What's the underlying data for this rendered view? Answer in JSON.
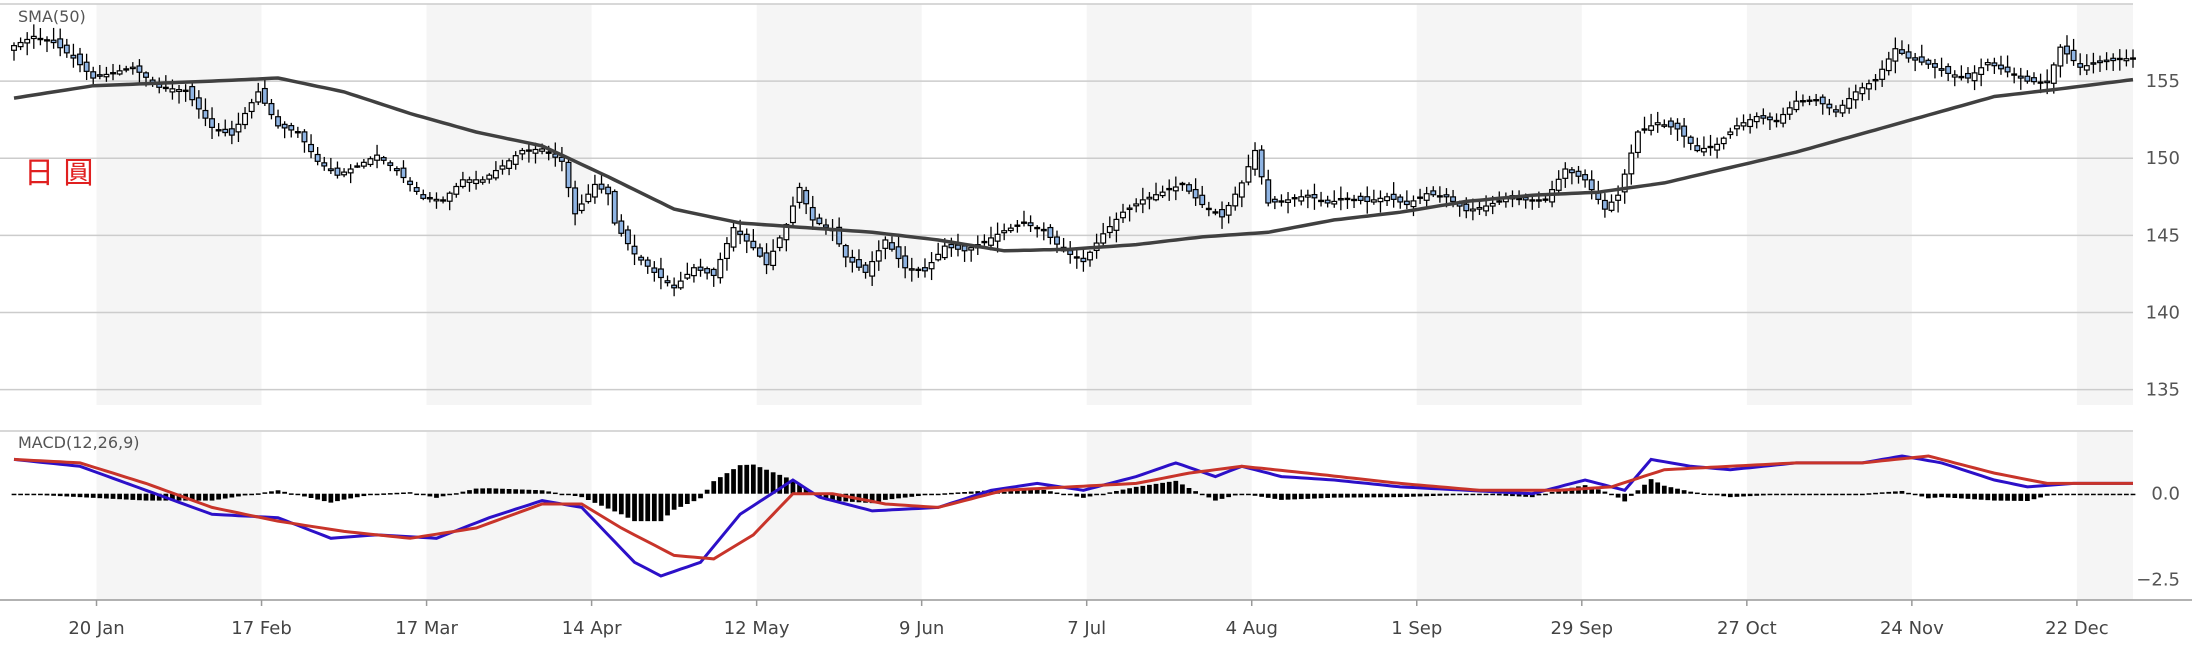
{
  "chart_data": [
    {
      "type": "candlestick",
      "title": "",
      "indicator_label": "SMA(50)",
      "watermark": "日 圓",
      "ylim": [
        134,
        160
      ],
      "y_ticks": [
        135,
        140,
        145,
        150,
        155
      ],
      "x_tick_labels": [
        "20 Jan",
        "17 Feb",
        "17 Mar",
        "14 Apr",
        "12 May",
        "9 Jun",
        "7 Jul",
        "4 Aug",
        "1 Sep",
        "29 Sep",
        "27 Oct",
        "24 Nov",
        "22 Dec"
      ],
      "close_keypoints": [
        [
          0,
          157.3
        ],
        [
          3,
          157.9
        ],
        [
          6,
          157.5
        ],
        [
          9,
          156.5
        ],
        [
          12,
          155.2
        ],
        [
          18,
          155.9
        ],
        [
          22,
          154.6
        ],
        [
          26,
          154.4
        ],
        [
          30,
          152.0
        ],
        [
          33,
          151.5
        ],
        [
          37,
          154.3
        ],
        [
          40,
          152.1
        ],
        [
          43,
          151.7
        ],
        [
          46,
          149.8
        ],
        [
          49,
          148.9
        ],
        [
          52,
          149.5
        ],
        [
          55,
          150.2
        ],
        [
          58,
          149.2
        ],
        [
          62,
          147.4
        ],
        [
          65,
          147.3
        ],
        [
          68,
          148.6
        ],
        [
          71,
          148.6
        ],
        [
          74,
          149.5
        ],
        [
          77,
          150.5
        ],
        [
          80,
          150.6
        ],
        [
          83,
          149.8
        ],
        [
          85,
          146.4
        ],
        [
          88,
          148.3
        ],
        [
          90,
          147.7
        ],
        [
          91,
          145.8
        ],
        [
          94,
          143.8
        ],
        [
          97,
          142.6
        ],
        [
          100,
          141.6
        ],
        [
          103,
          142.9
        ],
        [
          106,
          142.4
        ],
        [
          109,
          145.5
        ],
        [
          112,
          144.2
        ],
        [
          114,
          143.1
        ],
        [
          117,
          145.7
        ],
        [
          119,
          148.1
        ],
        [
          121,
          146.0
        ],
        [
          124,
          145.3
        ],
        [
          126,
          143.6
        ],
        [
          129,
          142.6
        ],
        [
          132,
          144.7
        ],
        [
          135,
          142.9
        ],
        [
          138,
          142.7
        ],
        [
          141,
          144.3
        ],
        [
          144,
          144.0
        ],
        [
          147,
          144.6
        ],
        [
          150,
          145.3
        ],
        [
          153,
          145.8
        ],
        [
          156,
          145.3
        ],
        [
          159,
          144.0
        ],
        [
          162,
          143.3
        ],
        [
          165,
          145.1
        ],
        [
          168,
          146.5
        ],
        [
          171,
          147.3
        ],
        [
          174,
          147.8
        ],
        [
          177,
          148.3
        ],
        [
          180,
          147.0
        ],
        [
          183,
          146.2
        ],
        [
          186,
          148.4
        ],
        [
          188,
          150.5
        ],
        [
          190,
          147.1
        ],
        [
          193,
          147.3
        ],
        [
          196,
          147.6
        ],
        [
          199,
          147.1
        ],
        [
          202,
          147.4
        ],
        [
          205,
          147.2
        ],
        [
          208,
          147.5
        ],
        [
          211,
          147.0
        ],
        [
          214,
          147.7
        ],
        [
          217,
          147.5
        ],
        [
          220,
          146.6
        ],
        [
          223,
          146.9
        ],
        [
          226,
          147.4
        ],
        [
          229,
          147.3
        ],
        [
          232,
          147.3
        ],
        [
          235,
          149.3
        ],
        [
          238,
          148.6
        ],
        [
          241,
          146.7
        ],
        [
          243,
          147.6
        ],
        [
          246,
          151.7
        ],
        [
          249,
          152.3
        ],
        [
          252,
          151.9
        ],
        [
          255,
          150.5
        ],
        [
          258,
          150.9
        ],
        [
          261,
          152.1
        ],
        [
          264,
          152.7
        ],
        [
          267,
          152.4
        ],
        [
          270,
          153.7
        ],
        [
          273,
          153.8
        ],
        [
          276,
          153.0
        ],
        [
          279,
          154.3
        ],
        [
          282,
          155.1
        ],
        [
          285,
          157.1
        ],
        [
          287,
          156.5
        ],
        [
          290,
          156.1
        ],
        [
          293,
          155.5
        ],
        [
          296,
          155.2
        ],
        [
          299,
          156.2
        ],
        [
          302,
          155.6
        ],
        [
          305,
          155.0
        ],
        [
          308,
          154.9
        ],
        [
          310,
          157.2
        ],
        [
          313,
          155.9
        ],
        [
          316,
          156.2
        ],
        [
          319,
          156.4
        ],
        [
          321,
          156.5
        ]
      ],
      "sma50_keypoints": [
        [
          0,
          153.9
        ],
        [
          12,
          154.7
        ],
        [
          30,
          155.0
        ],
        [
          40,
          155.2
        ],
        [
          50,
          154.3
        ],
        [
          60,
          152.9
        ],
        [
          70,
          151.7
        ],
        [
          80,
          150.8
        ],
        [
          90,
          148.8
        ],
        [
          100,
          146.7
        ],
        [
          110,
          145.8
        ],
        [
          120,
          145.5
        ],
        [
          130,
          145.2
        ],
        [
          140,
          144.7
        ],
        [
          150,
          144.0
        ],
        [
          160,
          144.1
        ],
        [
          170,
          144.4
        ],
        [
          180,
          144.9
        ],
        [
          190,
          145.2
        ],
        [
          200,
          146.0
        ],
        [
          210,
          146.5
        ],
        [
          220,
          147.2
        ],
        [
          230,
          147.6
        ],
        [
          240,
          147.8
        ],
        [
          250,
          148.4
        ],
        [
          260,
          149.4
        ],
        [
          270,
          150.4
        ],
        [
          280,
          151.6
        ],
        [
          290,
          152.8
        ],
        [
          300,
          154.0
        ],
        [
          310,
          154.5
        ],
        [
          321,
          155.1
        ]
      ]
    },
    {
      "type": "line",
      "indicator_label": "MACD(12,26,9)",
      "ylim": [
        -3.1,
        1.8
      ],
      "y_ticks": [
        0.0,
        -2.5
      ],
      "macd_keypoints": [
        [
          0,
          1.0
        ],
        [
          10,
          0.8
        ],
        [
          20,
          0.1
        ],
        [
          30,
          -0.6
        ],
        [
          40,
          -0.7
        ],
        [
          48,
          -1.3
        ],
        [
          55,
          -1.2
        ],
        [
          64,
          -1.3
        ],
        [
          72,
          -0.7
        ],
        [
          80,
          -0.2
        ],
        [
          86,
          -0.4
        ],
        [
          94,
          -2.0
        ],
        [
          98,
          -2.4
        ],
        [
          104,
          -2.0
        ],
        [
          110,
          -0.6
        ],
        [
          118,
          0.4
        ],
        [
          122,
          -0.1
        ],
        [
          130,
          -0.5
        ],
        [
          140,
          -0.4
        ],
        [
          148,
          0.1
        ],
        [
          155,
          0.3
        ],
        [
          162,
          0.1
        ],
        [
          170,
          0.5
        ],
        [
          176,
          0.9
        ],
        [
          182,
          0.5
        ],
        [
          186,
          0.8
        ],
        [
          192,
          0.5
        ],
        [
          200,
          0.4
        ],
        [
          210,
          0.2
        ],
        [
          220,
          0.1
        ],
        [
          230,
          0.0
        ],
        [
          238,
          0.4
        ],
        [
          244,
          0.1
        ],
        [
          248,
          1.0
        ],
        [
          254,
          0.8
        ],
        [
          260,
          0.7
        ],
        [
          270,
          0.9
        ],
        [
          280,
          0.9
        ],
        [
          286,
          1.1
        ],
        [
          292,
          0.9
        ],
        [
          300,
          0.4
        ],
        [
          305,
          0.2
        ],
        [
          312,
          0.3
        ],
        [
          321,
          0.3
        ]
      ],
      "signal_keypoints": [
        [
          0,
          1.0
        ],
        [
          10,
          0.9
        ],
        [
          20,
          0.3
        ],
        [
          30,
          -0.4
        ],
        [
          40,
          -0.8
        ],
        [
          50,
          -1.1
        ],
        [
          60,
          -1.3
        ],
        [
          70,
          -1.0
        ],
        [
          80,
          -0.3
        ],
        [
          86,
          -0.3
        ],
        [
          92,
          -1.0
        ],
        [
          100,
          -1.8
        ],
        [
          106,
          -1.9
        ],
        [
          112,
          -1.2
        ],
        [
          118,
          0.0
        ],
        [
          124,
          0.0
        ],
        [
          132,
          -0.3
        ],
        [
          140,
          -0.4
        ],
        [
          150,
          0.1
        ],
        [
          160,
          0.2
        ],
        [
          170,
          0.3
        ],
        [
          178,
          0.6
        ],
        [
          186,
          0.8
        ],
        [
          196,
          0.6
        ],
        [
          210,
          0.3
        ],
        [
          222,
          0.1
        ],
        [
          234,
          0.1
        ],
        [
          242,
          0.2
        ],
        [
          250,
          0.7
        ],
        [
          260,
          0.8
        ],
        [
          270,
          0.9
        ],
        [
          280,
          0.9
        ],
        [
          290,
          1.1
        ],
        [
          300,
          0.6
        ],
        [
          308,
          0.3
        ],
        [
          321,
          0.3
        ]
      ]
    }
  ],
  "colors": {
    "bull_candle": "#ffffff",
    "bear_candle": "#8fb4e3",
    "sma": "#404040",
    "macd": "#2c10c8",
    "signal": "#c8342a",
    "watermark": "#e02020",
    "band": "#f5f5f5"
  }
}
